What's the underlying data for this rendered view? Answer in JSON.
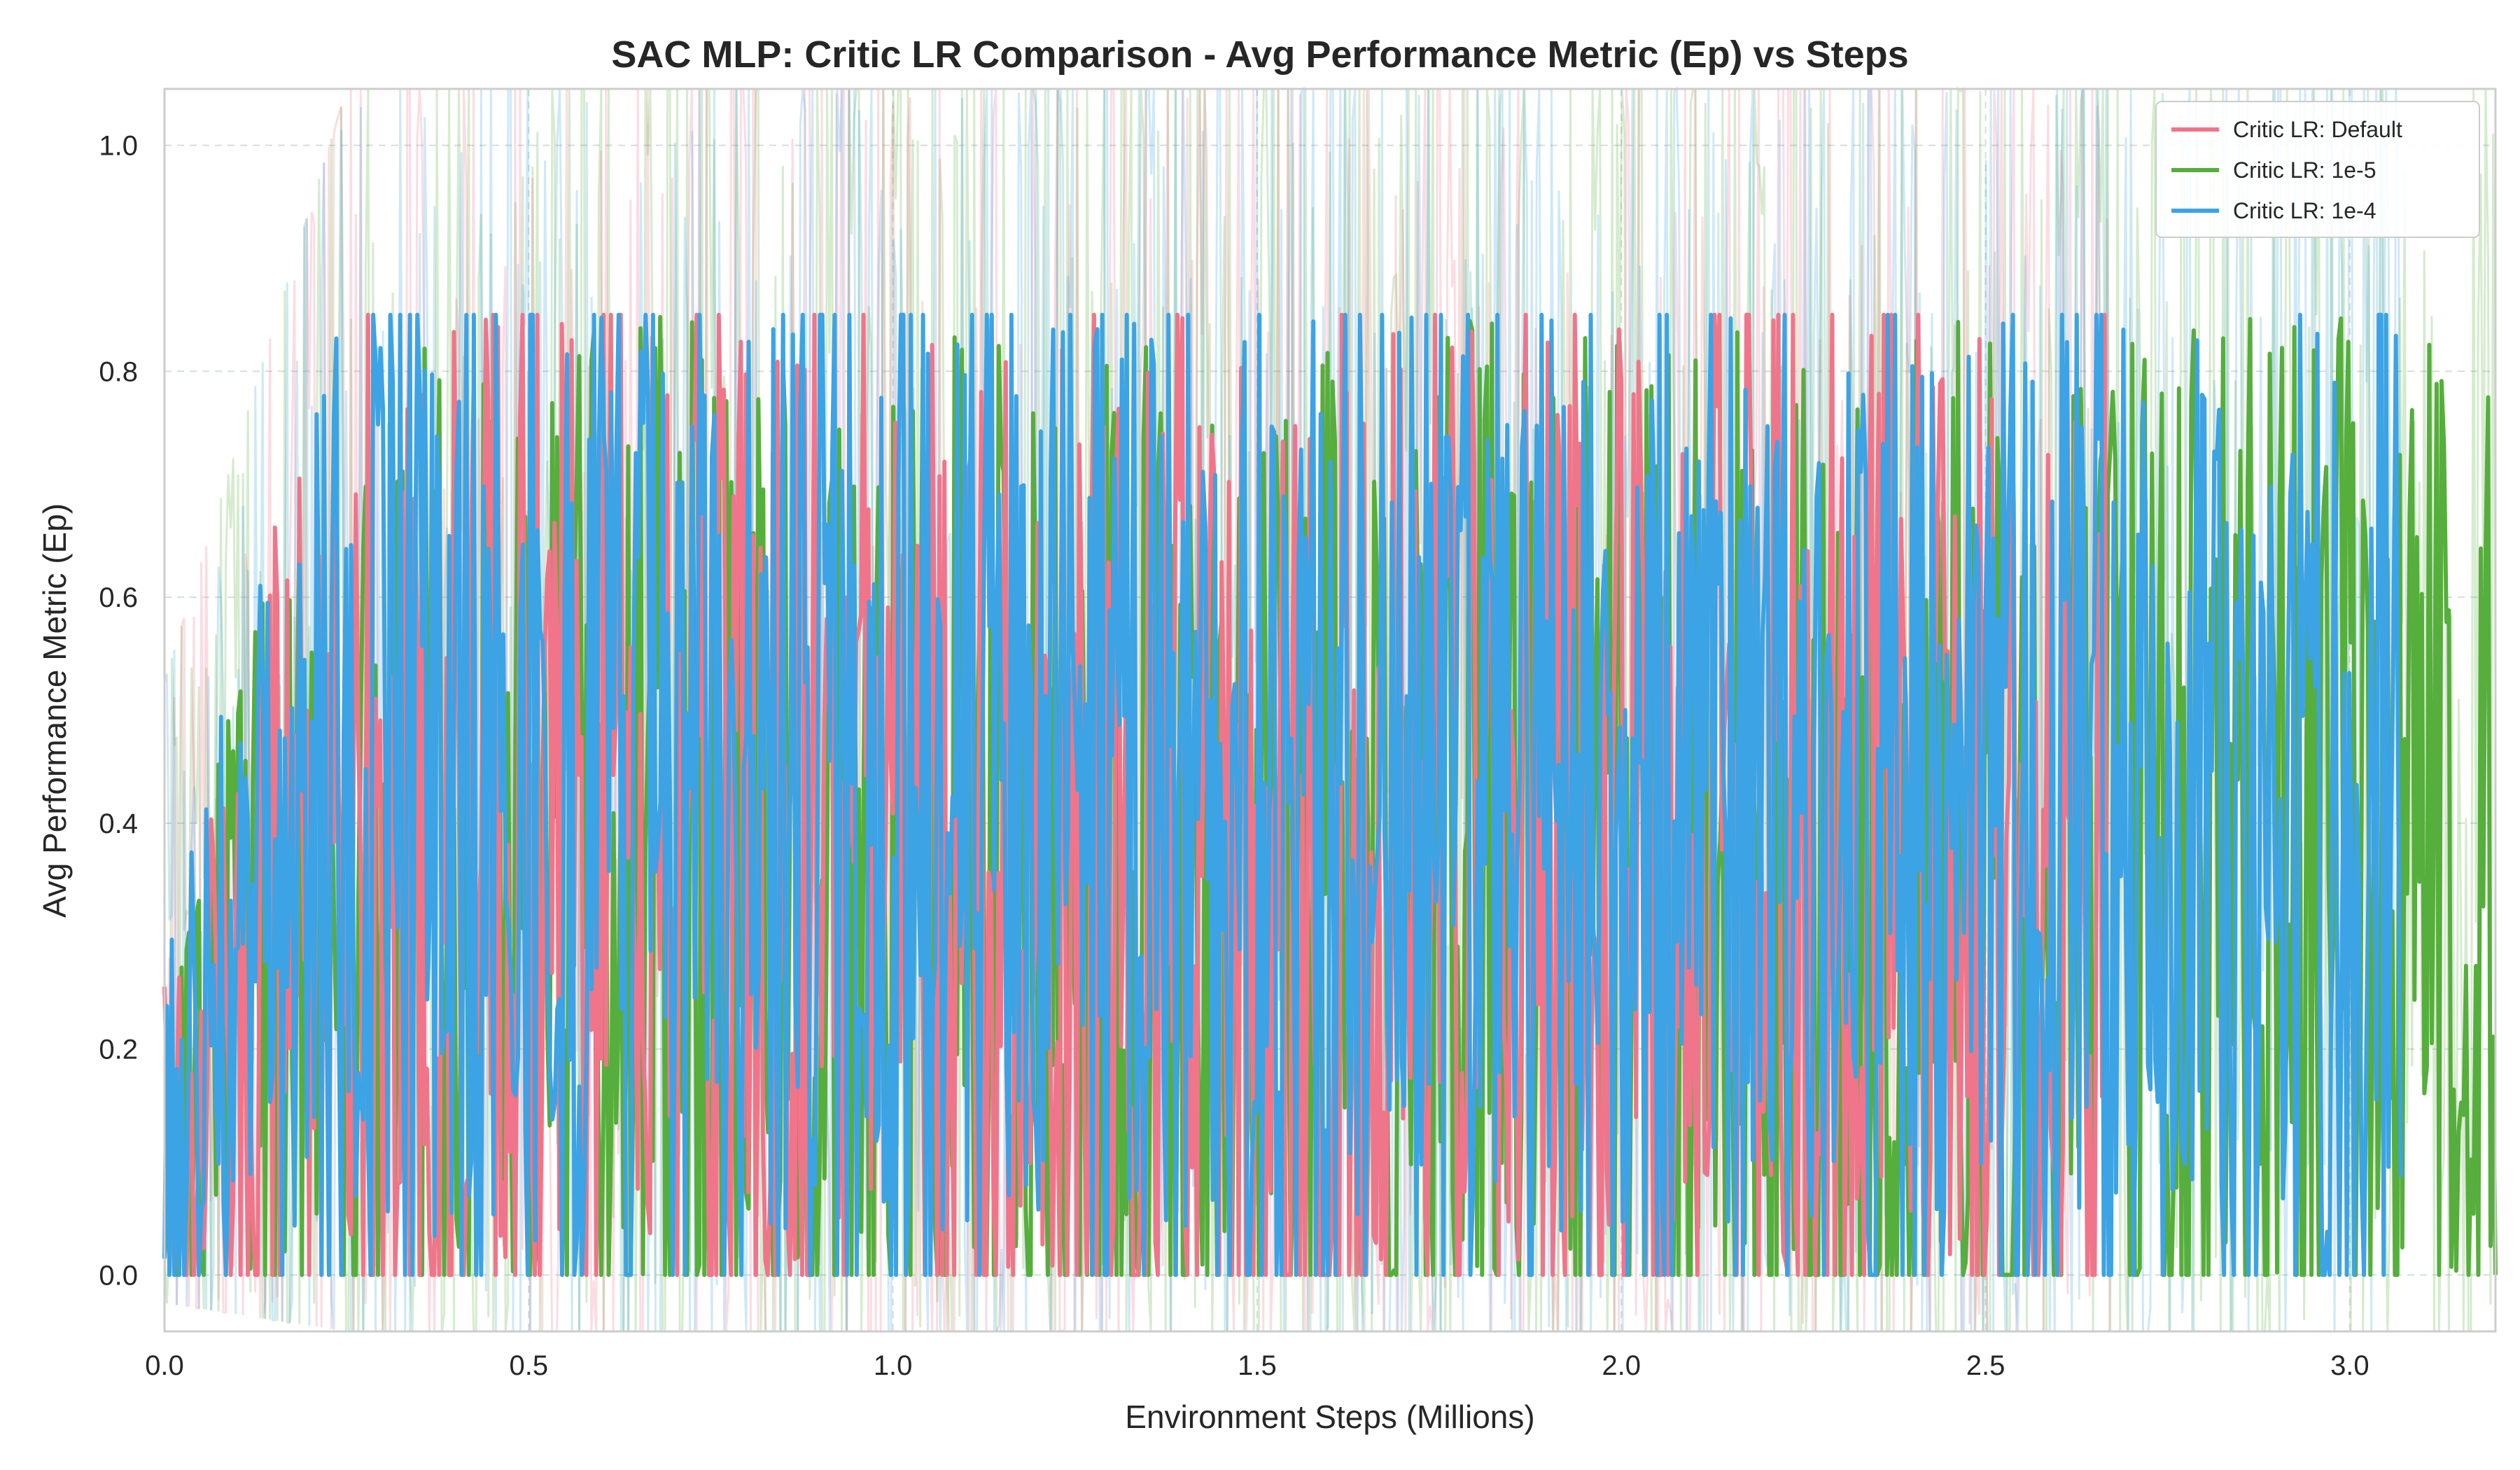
{
  "chart_data": {
    "type": "line",
    "title": "SAC MLP: Critic LR Comparison - Avg Performance Metric (Ep) vs Steps",
    "xlabel": "Environment Steps (Millions)",
    "ylabel": "Avg Performance Metric (Ep)",
    "xlim": [
      0.0,
      3.2
    ],
    "ylim": [
      -0.05,
      1.05
    ],
    "xticks": [
      "0.0",
      "0.5",
      "1.0",
      "1.5",
      "2.0",
      "2.5",
      "3.0"
    ],
    "yticks": [
      "0.0",
      "0.2",
      "0.4",
      "0.6",
      "0.8",
      "1.0"
    ],
    "grid": true,
    "grid_style": "dashed",
    "legend_position": "top-right",
    "series": [
      {
        "name": "Critic LR: Default",
        "color": "#f0758a",
        "x_end": 2.67,
        "smoothed_range": [
          0.0,
          0.85
        ],
        "smoothed_typical_mean": 0.45,
        "raw_range": [
          -0.05,
          1.05
        ],
        "raw_opacity": 0.25
      },
      {
        "name": "Critic LR: 1e-5",
        "color": "#56ae3c",
        "x_end": 3.2,
        "smoothed_range": [
          0.0,
          0.85
        ],
        "smoothed_typical_mean": 0.4,
        "raw_range": [
          -0.05,
          1.05
        ],
        "raw_opacity": 0.25
      },
      {
        "name": "Critic LR: 1e-4",
        "color": "#3ca3e4",
        "x_end": 3.07,
        "smoothed_range": [
          0.0,
          0.85
        ],
        "smoothed_typical_mean": 0.48,
        "raw_range": [
          -0.05,
          1.05
        ],
        "raw_opacity": 0.25
      }
    ]
  }
}
